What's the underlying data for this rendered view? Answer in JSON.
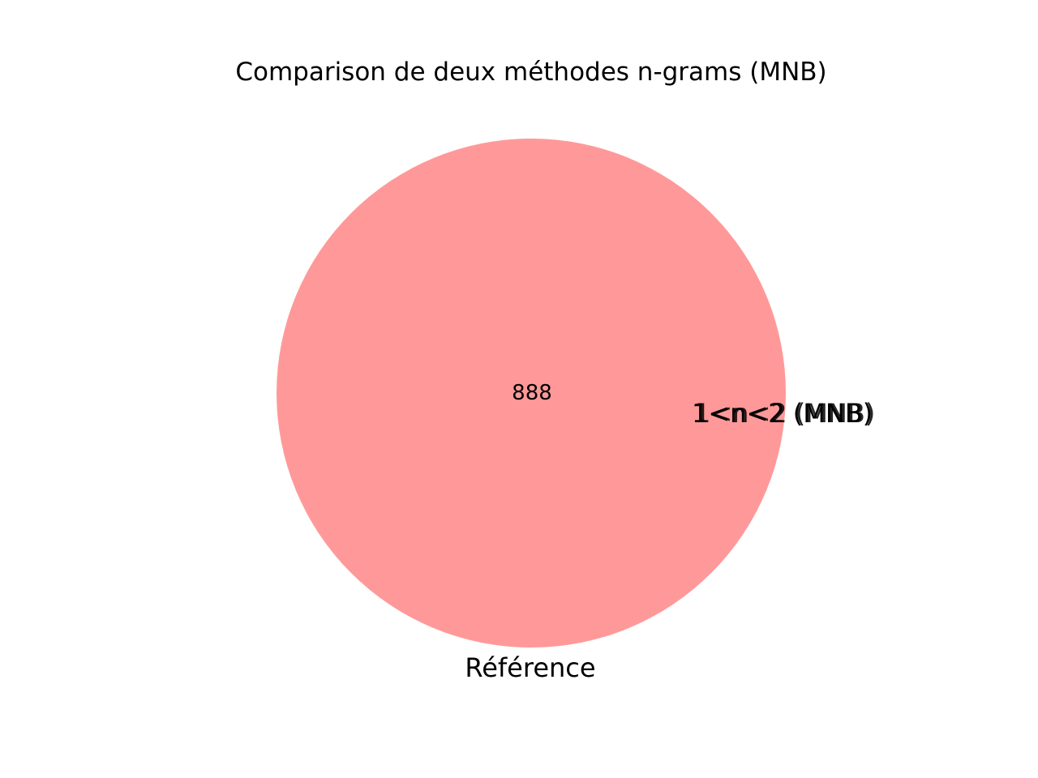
{
  "title": "Comparison de deux méthodes n-grams (MNB)",
  "sets": [
    {
      "name": "Référence",
      "color": "#ff9999"
    },
    {
      "name": "1<n<2 (MNB)",
      "color": "#99ff99"
    }
  ],
  "regions": {
    "only_reference": "888",
    "only_second": "",
    "both": ""
  }
}
